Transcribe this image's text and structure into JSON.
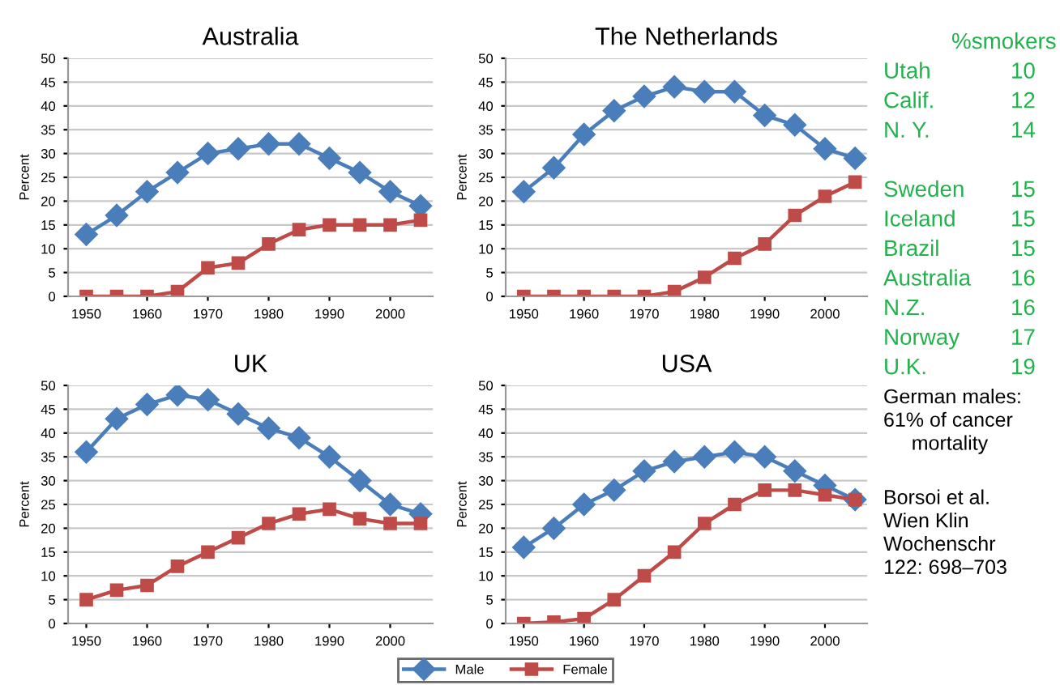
{
  "chart_data": [
    {
      "type": "line",
      "title": "Australia",
      "ylabel": "Percent",
      "x": [
        1950,
        1955,
        1960,
        1965,
        1970,
        1975,
        1980,
        1985,
        1990,
        1995,
        2000,
        2005
      ],
      "xlim": [
        1947,
        2007
      ],
      "xticks": [
        1950,
        1960,
        1970,
        1980,
        1990,
        2000
      ],
      "ylim": [
        0,
        50
      ],
      "yticks": [
        0,
        5,
        10,
        15,
        20,
        25,
        30,
        35,
        40,
        45,
        50
      ],
      "grid": "y",
      "series": [
        {
          "color": "#4a7ebb",
          "marker": "diamond",
          "values": [
            13,
            17,
            22,
            26,
            30,
            31,
            32,
            32,
            29,
            26,
            22,
            19
          ]
        },
        {
          "color": "#be4b48",
          "marker": "square",
          "values": [
            0,
            0,
            0,
            1,
            6,
            7,
            11,
            14,
            15,
            15,
            15,
            16
          ]
        }
      ]
    },
    {
      "type": "line",
      "title": "The Netherlands",
      "ylabel": "Percent",
      "x": [
        1950,
        1955,
        1960,
        1965,
        1970,
        1975,
        1980,
        1985,
        1990,
        1995,
        2000,
        2005
      ],
      "xlim": [
        1947,
        2007
      ],
      "xticks": [
        1950,
        1960,
        1970,
        1980,
        1990,
        2000
      ],
      "ylim": [
        0,
        50
      ],
      "yticks": [
        0,
        5,
        10,
        15,
        20,
        25,
        30,
        35,
        40,
        45,
        50
      ],
      "grid": "y",
      "series": [
        {
          "color": "#4a7ebb",
          "marker": "diamond",
          "values": [
            22,
            27,
            34,
            39,
            42,
            44,
            43,
            43,
            38,
            36,
            31,
            29
          ]
        },
        {
          "color": "#be4b48",
          "marker": "square",
          "values": [
            0,
            0,
            0,
            0,
            0,
            1,
            4,
            8,
            11,
            17,
            21,
            24
          ]
        }
      ]
    },
    {
      "type": "line",
      "title": "UK",
      "ylabel": "Percent",
      "x": [
        1950,
        1955,
        1960,
        1965,
        1970,
        1975,
        1980,
        1985,
        1990,
        1995,
        2000,
        2005
      ],
      "xlim": [
        1947,
        2007
      ],
      "xticks": [
        1950,
        1960,
        1970,
        1980,
        1990,
        2000
      ],
      "ylim": [
        0,
        50
      ],
      "yticks": [
        0,
        5,
        10,
        15,
        20,
        25,
        30,
        35,
        40,
        45,
        50
      ],
      "grid": "y",
      "series": [
        {
          "color": "#4a7ebb",
          "marker": "diamond",
          "values": [
            36,
            43,
            46,
            48,
            47,
            44,
            41,
            39,
            35,
            30,
            25,
            23
          ]
        },
        {
          "color": "#be4b48",
          "marker": "square",
          "values": [
            5,
            7,
            8,
            12,
            15,
            18,
            21,
            23,
            24,
            22,
            21,
            21
          ]
        }
      ]
    },
    {
      "type": "line",
      "title": "USA",
      "ylabel": "Percent",
      "x": [
        1950,
        1955,
        1960,
        1965,
        1970,
        1975,
        1980,
        1985,
        1990,
        1995,
        2000,
        2005
      ],
      "xlim": [
        1947,
        2007
      ],
      "xticks": [
        1950,
        1960,
        1970,
        1980,
        1990,
        2000
      ],
      "ylim": [
        0,
        50
      ],
      "yticks": [
        0,
        5,
        10,
        15,
        20,
        25,
        30,
        35,
        40,
        45,
        50
      ],
      "grid": "y",
      "legend": "bottom",
      "series": [
        {
          "name": "Male",
          "color": "#4a7ebb",
          "marker": "diamond",
          "values": [
            16,
            20,
            25,
            28,
            32,
            34,
            35,
            36,
            35,
            32,
            29,
            26
          ]
        },
        {
          "name": "Female",
          "color": "#be4b48",
          "marker": "square",
          "values": [
            0,
            0.3,
            1,
            5,
            10,
            15,
            21,
            25,
            28,
            28,
            27,
            26
          ]
        }
      ]
    },
    {
      "type": "other",
      "title": "%smokers",
      "annotations": [
        "Utah",
        "10",
        "Calif.",
        "12",
        "N. Y.",
        "14",
        "Sweden",
        "15",
        "Iceland",
        "15",
        "Brazil",
        "15",
        "Australia",
        "16",
        "N.Z.",
        "16",
        "Norway",
        "17",
        "U.K.",
        "19"
      ]
    },
    {
      "type": "other",
      "annotations": [
        "German males:\n61% of cancer\n     mortality",
        "Borsoi et al.\nWien Klin\nWochenschr\n122: 698–703"
      ]
    }
  ]
}
